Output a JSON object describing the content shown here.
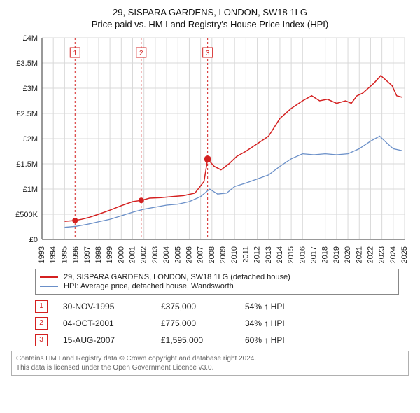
{
  "title_line1": "29, SISPARA GARDENS, LONDON, SW18 1LG",
  "title_line2": "Price paid vs. HM Land Registry's House Price Index (HPI)",
  "chart": {
    "type": "line",
    "x_start_year": 1993,
    "x_end_year": 2025,
    "x_tick_step": 1,
    "y_min": 0,
    "y_max": 4000000,
    "y_tick_step": 500000,
    "y_tick_labels": [
      "£0",
      "£500K",
      "£1M",
      "£1.5M",
      "£2M",
      "£2.5M",
      "£3M",
      "£3.5M",
      "£4M"
    ],
    "background_color": "#ffffff",
    "grid_color": "#d9d9d9",
    "axis_color": "#333333",
    "series": [
      {
        "name": "29, SISPARA GARDENS, LONDON, SW18 1LG (detached house)",
        "color": "#d42020",
        "line_width": 1.5,
        "data": [
          [
            1995.0,
            360000
          ],
          [
            1995.92,
            375000
          ],
          [
            1996.5,
            400000
          ],
          [
            1997.2,
            440000
          ],
          [
            1998.0,
            500000
          ],
          [
            1999.0,
            580000
          ],
          [
            2000.0,
            670000
          ],
          [
            2001.0,
            750000
          ],
          [
            2001.76,
            775000
          ],
          [
            2002.5,
            820000
          ],
          [
            2003.5,
            830000
          ],
          [
            2004.5,
            850000
          ],
          [
            2005.5,
            870000
          ],
          [
            2006.5,
            920000
          ],
          [
            2007.3,
            1150000
          ],
          [
            2007.62,
            1595000
          ],
          [
            2008.2,
            1450000
          ],
          [
            2008.8,
            1380000
          ],
          [
            2009.5,
            1500000
          ],
          [
            2010.2,
            1650000
          ],
          [
            2011.0,
            1750000
          ],
          [
            2012.0,
            1900000
          ],
          [
            2013.0,
            2050000
          ],
          [
            2014.0,
            2400000
          ],
          [
            2015.0,
            2600000
          ],
          [
            2016.0,
            2750000
          ],
          [
            2016.8,
            2850000
          ],
          [
            2017.5,
            2750000
          ],
          [
            2018.2,
            2780000
          ],
          [
            2019.0,
            2700000
          ],
          [
            2019.8,
            2750000
          ],
          [
            2020.3,
            2700000
          ],
          [
            2020.8,
            2850000
          ],
          [
            2021.3,
            2900000
          ],
          [
            2021.8,
            3000000
          ],
          [
            2022.3,
            3100000
          ],
          [
            2022.9,
            3250000
          ],
          [
            2023.4,
            3150000
          ],
          [
            2023.9,
            3050000
          ],
          [
            2024.3,
            2850000
          ],
          [
            2024.8,
            2820000
          ]
        ],
        "markers": [
          {
            "x": 1995.92,
            "y": 375000,
            "r": 4
          },
          {
            "x": 2001.76,
            "y": 775000,
            "r": 4
          },
          {
            "x": 2007.62,
            "y": 1595000,
            "r": 5
          }
        ]
      },
      {
        "name": "HPI: Average price, detached house, Wandsworth",
        "color": "#6a8fc8",
        "line_width": 1.3,
        "data": [
          [
            1995.0,
            240000
          ],
          [
            1996.0,
            260000
          ],
          [
            1997.0,
            300000
          ],
          [
            1998.0,
            350000
          ],
          [
            1999.0,
            400000
          ],
          [
            2000.0,
            470000
          ],
          [
            2001.0,
            540000
          ],
          [
            2002.0,
            600000
          ],
          [
            2003.0,
            640000
          ],
          [
            2004.0,
            680000
          ],
          [
            2005.0,
            700000
          ],
          [
            2006.0,
            750000
          ],
          [
            2007.0,
            850000
          ],
          [
            2007.8,
            1000000
          ],
          [
            2008.5,
            900000
          ],
          [
            2009.3,
            920000
          ],
          [
            2010.0,
            1050000
          ],
          [
            2011.0,
            1120000
          ],
          [
            2012.0,
            1200000
          ],
          [
            2013.0,
            1280000
          ],
          [
            2014.0,
            1450000
          ],
          [
            2015.0,
            1600000
          ],
          [
            2016.0,
            1700000
          ],
          [
            2017.0,
            1680000
          ],
          [
            2018.0,
            1700000
          ],
          [
            2019.0,
            1680000
          ],
          [
            2020.0,
            1700000
          ],
          [
            2021.0,
            1800000
          ],
          [
            2022.0,
            1950000
          ],
          [
            2022.8,
            2050000
          ],
          [
            2023.5,
            1900000
          ],
          [
            2024.0,
            1800000
          ],
          [
            2024.8,
            1760000
          ]
        ]
      }
    ],
    "event_lines": [
      {
        "label": "1",
        "x": 1995.92,
        "color": "#d42020",
        "dash": "3,3"
      },
      {
        "label": "2",
        "x": 2001.76,
        "color": "#d42020",
        "dash": "3,3"
      },
      {
        "label": "3",
        "x": 2007.62,
        "color": "#d42020",
        "dash": "3,3"
      }
    ]
  },
  "legend": {
    "items": [
      {
        "color": "#d42020",
        "label": "29, SISPARA GARDENS, LONDON, SW18 1LG (detached house)"
      },
      {
        "color": "#6a8fc8",
        "label": "HPI: Average price, detached house, Wandsworth"
      }
    ]
  },
  "events": [
    {
      "n": "1",
      "date": "30-NOV-1995",
      "price": "£375,000",
      "pct": "54% ↑ HPI"
    },
    {
      "n": "2",
      "date": "04-OCT-2001",
      "price": "£775,000",
      "pct": "34% ↑ HPI"
    },
    {
      "n": "3",
      "date": "15-AUG-2007",
      "price": "£1,595,000",
      "pct": "60% ↑ HPI"
    }
  ],
  "footnote_line1": "Contains HM Land Registry data © Crown copyright and database right 2024.",
  "footnote_line2": "This data is licensed under the Open Government Licence v3.0."
}
